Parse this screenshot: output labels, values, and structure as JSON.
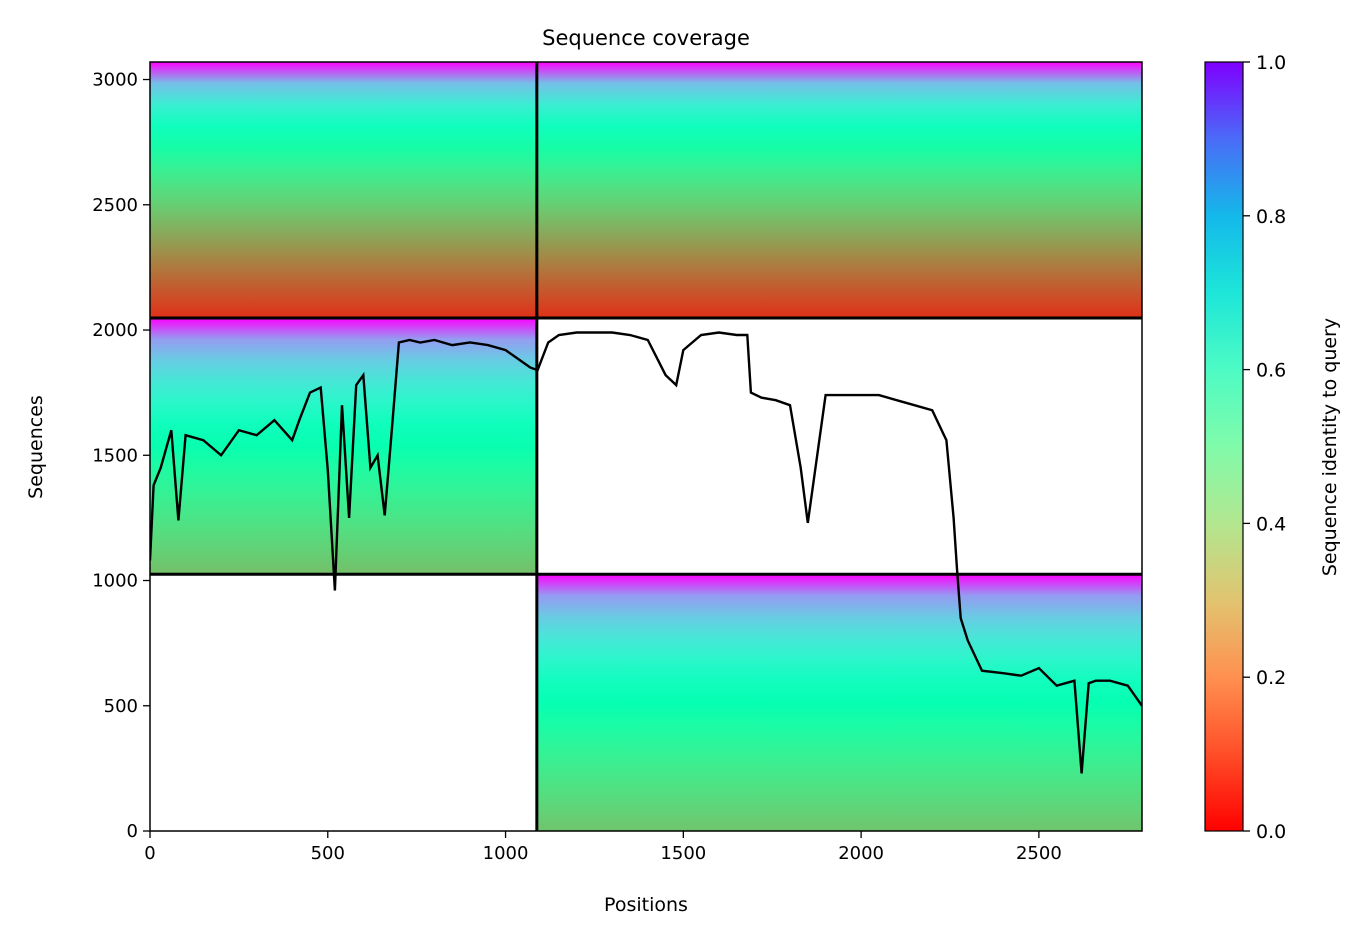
{
  "chart_data": {
    "type": "heatmap",
    "title": "Sequence coverage",
    "xlabel": "Positions",
    "ylabel": "Sequences",
    "xlim": [
      0,
      2790
    ],
    "ylim": [
      0,
      3070
    ],
    "x_ticks": [
      0,
      500,
      1000,
      1500,
      2000,
      2500
    ],
    "y_ticks": [
      0,
      500,
      1000,
      1500,
      2000,
      2500,
      3000
    ],
    "colorbar": {
      "label": "Sequence identity to query",
      "range": [
        0.0,
        1.0
      ],
      "ticks": [
        "0.0",
        "0.2",
        "0.4",
        "0.6",
        "0.8",
        "1.0"
      ],
      "colormap": "rainbow_r"
    },
    "domain_boundaries_x": [
      1088
    ],
    "domain_boundaries_y": [
      1025,
      2048
    ],
    "coverage_blocks": [
      {
        "x": [
          0,
          1088
        ],
        "y": [
          2048,
          3070
        ],
        "identity_top": 1.0,
        "identity_bottom": 0.06
      },
      {
        "x": [
          1088,
          2790
        ],
        "y": [
          2048,
          3070
        ],
        "identity_top": 1.0,
        "identity_bottom": 0.06
      },
      {
        "x": [
          0,
          1088
        ],
        "y": [
          1025,
          2048
        ],
        "identity_top": 1.0,
        "identity_bottom": 0.27
      },
      {
        "x": [
          1088,
          2790
        ],
        "y": [
          0,
          1025
        ],
        "identity_top": 1.0,
        "identity_bottom": 0.28
      }
    ],
    "coverage_line": {
      "x": [
        0,
        10,
        30,
        60,
        80,
        100,
        150,
        200,
        250,
        300,
        350,
        400,
        420,
        450,
        480,
        500,
        520,
        540,
        560,
        580,
        600,
        620,
        640,
        660,
        680,
        700,
        730,
        760,
        800,
        850,
        900,
        950,
        1000,
        1040,
        1070,
        1090,
        1120,
        1150,
        1200,
        1250,
        1300,
        1350,
        1400,
        1450,
        1480,
        1500,
        1550,
        1600,
        1650,
        1680,
        1690,
        1720,
        1760,
        1800,
        1830,
        1850,
        1900,
        1950,
        2000,
        2050,
        2100,
        2150,
        2200,
        2240,
        2260,
        2270,
        2280,
        2300,
        2340,
        2400,
        2450,
        2500,
        2550,
        2600,
        2620,
        2640,
        2660,
        2700,
        2750,
        2790
      ],
      "y": [
        1080,
        1380,
        1450,
        1600,
        1240,
        1580,
        1560,
        1500,
        1600,
        1580,
        1640,
        1560,
        1640,
        1750,
        1770,
        1440,
        960,
        1700,
        1250,
        1780,
        1820,
        1450,
        1500,
        1260,
        1600,
        1950,
        1960,
        1950,
        1960,
        1940,
        1950,
        1940,
        1920,
        1880,
        1850,
        1840,
        1950,
        1980,
        1990,
        1990,
        1990,
        1980,
        1960,
        1820,
        1780,
        1920,
        1980,
        1990,
        1980,
        1980,
        1750,
        1730,
        1720,
        1700,
        1450,
        1230,
        1740,
        1740,
        1740,
        1740,
        1720,
        1700,
        1680,
        1560,
        1250,
        1040,
        850,
        760,
        640,
        630,
        620,
        650,
        580,
        600,
        230,
        590,
        600,
        600,
        580,
        500
      ]
    }
  }
}
